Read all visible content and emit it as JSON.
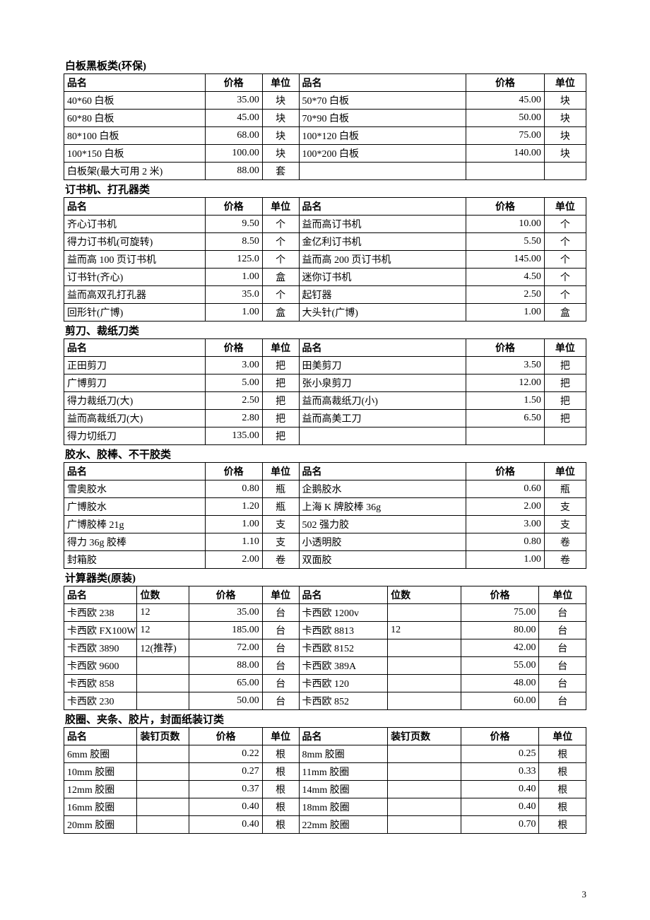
{
  "page_number": "3",
  "headers6": [
    "品名",
    "价格",
    "单位",
    "品名",
    "价格",
    "单位"
  ],
  "sections6": [
    {
      "title": "白板黑板类(环保)",
      "rows": [
        [
          "40*60 白板",
          "35.00",
          "块",
          "50*70 白板",
          "45.00",
          "块"
        ],
        [
          "60*80 白板",
          "45.00",
          "块",
          "70*90 白板",
          "50.00",
          "块"
        ],
        [
          "80*100 白板",
          "68.00",
          "块",
          "100*120 白板",
          "75.00",
          "块"
        ],
        [
          "100*150 白板",
          "100.00",
          "块",
          "100*200 白板",
          "140.00",
          "块"
        ],
        [
          "白板架(最大可用 2 米)",
          "88.00",
          "套",
          "",
          "",
          ""
        ]
      ]
    },
    {
      "title": "订书机、打孔器类",
      "rows": [
        [
          "齐心订书机",
          "9.50",
          "个",
          "益而高订书机",
          "10.00",
          "个"
        ],
        [
          "得力订书机(可旋转)",
          "8.50",
          "个",
          "金亿利订书机",
          "5.50",
          "个"
        ],
        [
          "益而高 100 页订书机",
          "125.0",
          "个",
          "益而高 200 页订书机",
          "145.00",
          "个"
        ],
        [
          "订书针(齐心)",
          "1.00",
          "盒",
          "迷你订书机",
          "4.50",
          "个"
        ],
        [
          "益而高双孔打孔器",
          "35.0",
          "个",
          "起钉器",
          "2.50",
          "个"
        ],
        [
          "回形针(广博)",
          "1.00",
          "盒",
          "大头针(广博)",
          "1.00",
          "盒"
        ]
      ]
    },
    {
      "title": "剪刀、裁纸刀类",
      "rows": [
        [
          "正田剪刀",
          "3.00",
          "把",
          "田美剪刀",
          "3.50",
          "把"
        ],
        [
          "广博剪刀",
          "5.00",
          "把",
          "张小泉剪刀",
          "12.00",
          "把"
        ],
        [
          "得力裁纸刀(大)",
          "2.50",
          "把",
          "益而高裁纸刀(小)",
          "1.50",
          "把"
        ],
        [
          "益而高裁纸刀(大)",
          "2.80",
          "把",
          "益而高美工刀",
          "6.50",
          "把"
        ],
        [
          "得力切纸刀",
          "135.00",
          "把",
          "",
          "",
          ""
        ]
      ]
    },
    {
      "title": "胶水、胶棒、不干胶类",
      "rows": [
        [
          "雪奥胶水",
          "0.80",
          "瓶",
          "企鹅胶水",
          "0.60",
          "瓶"
        ],
        [
          "广博胶水",
          "1.20",
          "瓶",
          "上海 K 牌胶棒 36g",
          "2.00",
          "支"
        ],
        [
          "广博胶棒 21g",
          "1.00",
          "支",
          "502 强力胶",
          "3.00",
          "支"
        ],
        [
          "得力 36g 胶棒",
          "1.10",
          "支",
          "小透明胶",
          "0.80",
          "卷"
        ],
        [
          "封箱胶",
          "2.00",
          "卷",
          "双面胶",
          "1.00",
          "卷"
        ]
      ]
    }
  ],
  "sections8": [
    {
      "title": "计算器类(原装)",
      "extra_label": "位数",
      "rows": [
        [
          "卡西欧 238",
          "12",
          "35.00",
          "台",
          "卡西欧 1200v",
          "",
          "75.00",
          "台"
        ],
        [
          "卡西欧 FX100W",
          "12",
          "185.00",
          "台",
          "卡西欧 8813",
          "12",
          "80.00",
          "台"
        ],
        [
          "卡西欧 3890",
          "12(推荐)",
          "72.00",
          "台",
          "卡西欧 8152",
          "",
          "42.00",
          "台"
        ],
        [
          "卡西欧 9600",
          "",
          "88.00",
          "台",
          "卡西欧 389A",
          "",
          "55.00",
          "台"
        ],
        [
          "卡西欧 858",
          "",
          "65.00",
          "台",
          "卡西欧 120",
          "",
          "48.00",
          "台"
        ],
        [
          "卡西欧 230",
          "",
          "50.00",
          "台",
          "卡西欧 852",
          "",
          "60.00",
          "台"
        ]
      ]
    },
    {
      "title": "胶圈、夹条、胶片，封面纸装订类",
      "extra_label": "装钉页数",
      "rows": [
        [
          "6mm 胶圈",
          "",
          "0.22",
          "根",
          "8mm 胶圈",
          "",
          "0.25",
          "根"
        ],
        [
          "10mm 胶圈",
          "",
          "0.27",
          "根",
          "11mm 胶圈",
          "",
          "0.33",
          "根"
        ],
        [
          "12mm 胶圈",
          "",
          "0.37",
          "根",
          "14mm 胶圈",
          "",
          "0.40",
          "根"
        ],
        [
          "16mm 胶圈",
          "",
          "0.40",
          "根",
          "18mm 胶圈",
          "",
          "0.40",
          "根"
        ],
        [
          "20mm 胶圈",
          "",
          "0.40",
          "根",
          "22mm 胶圈",
          "",
          "0.70",
          "根"
        ]
      ]
    }
  ]
}
